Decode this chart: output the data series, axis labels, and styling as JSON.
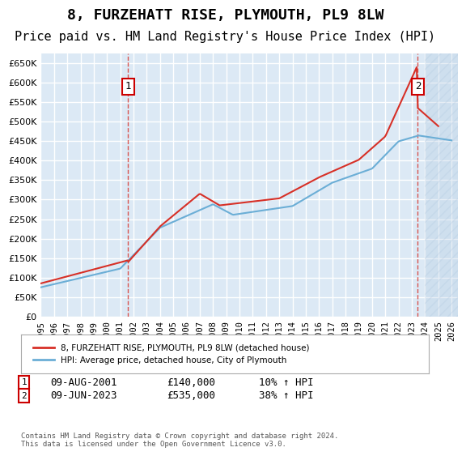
{
  "title": "8, FURZEHATT RISE, PLYMOUTH, PL9 8LW",
  "subtitle": "Price paid vs. HM Land Registry's House Price Index (HPI)",
  "title_fontsize": 13,
  "subtitle_fontsize": 11,
  "background_color": "#ffffff",
  "plot_bg_color": "#dce9f5",
  "grid_color": "#ffffff",
  "ylim": [
    0,
    675000
  ],
  "yticks": [
    0,
    50000,
    100000,
    150000,
    200000,
    250000,
    300000,
    350000,
    400000,
    450000,
    500000,
    550000,
    600000,
    650000
  ],
  "xlim_start": 1995.0,
  "xlim_end": 2026.5,
  "xtick_labels": [
    "1995",
    "1996",
    "1997",
    "1998",
    "1999",
    "2000",
    "2001",
    "2002",
    "2003",
    "2004",
    "2005",
    "2006",
    "2007",
    "2008",
    "2009",
    "2010",
    "2011",
    "2012",
    "2013",
    "2014",
    "2015",
    "2016",
    "2017",
    "2018",
    "2019",
    "2020",
    "2021",
    "2022",
    "2023",
    "2024",
    "2025",
    "2026"
  ],
  "xtick_values": [
    1995,
    1996,
    1997,
    1998,
    1999,
    2000,
    2001,
    2002,
    2003,
    2004,
    2005,
    2006,
    2007,
    2008,
    2009,
    2010,
    2011,
    2012,
    2013,
    2014,
    2015,
    2016,
    2017,
    2018,
    2019,
    2020,
    2021,
    2022,
    2023,
    2024,
    2025,
    2026
  ],
  "hpi_color": "#6baed6",
  "price_color": "#d73027",
  "hatch_color": "#d4e6f5",
  "marker1_x": 2001.6,
  "marker1_y": 140000,
  "marker1_label": "1",
  "marker1_date": "09-AUG-2001",
  "marker1_price": "£140,000",
  "marker1_hpi": "10% ↑ HPI",
  "marker2_x": 2023.45,
  "marker2_y": 535000,
  "marker2_label": "2",
  "marker2_date": "09-JUN-2023",
  "marker2_price": "£535,000",
  "marker2_hpi": "38% ↑ HPI",
  "legend_label1": "8, FURZEHATT RISE, PLYMOUTH, PL9 8LW (detached house)",
  "legend_label2": "HPI: Average price, detached house, City of Plymouth",
  "footer": "Contains HM Land Registry data © Crown copyright and database right 2024.\nThis data is licensed under the Open Government Licence v3.0."
}
